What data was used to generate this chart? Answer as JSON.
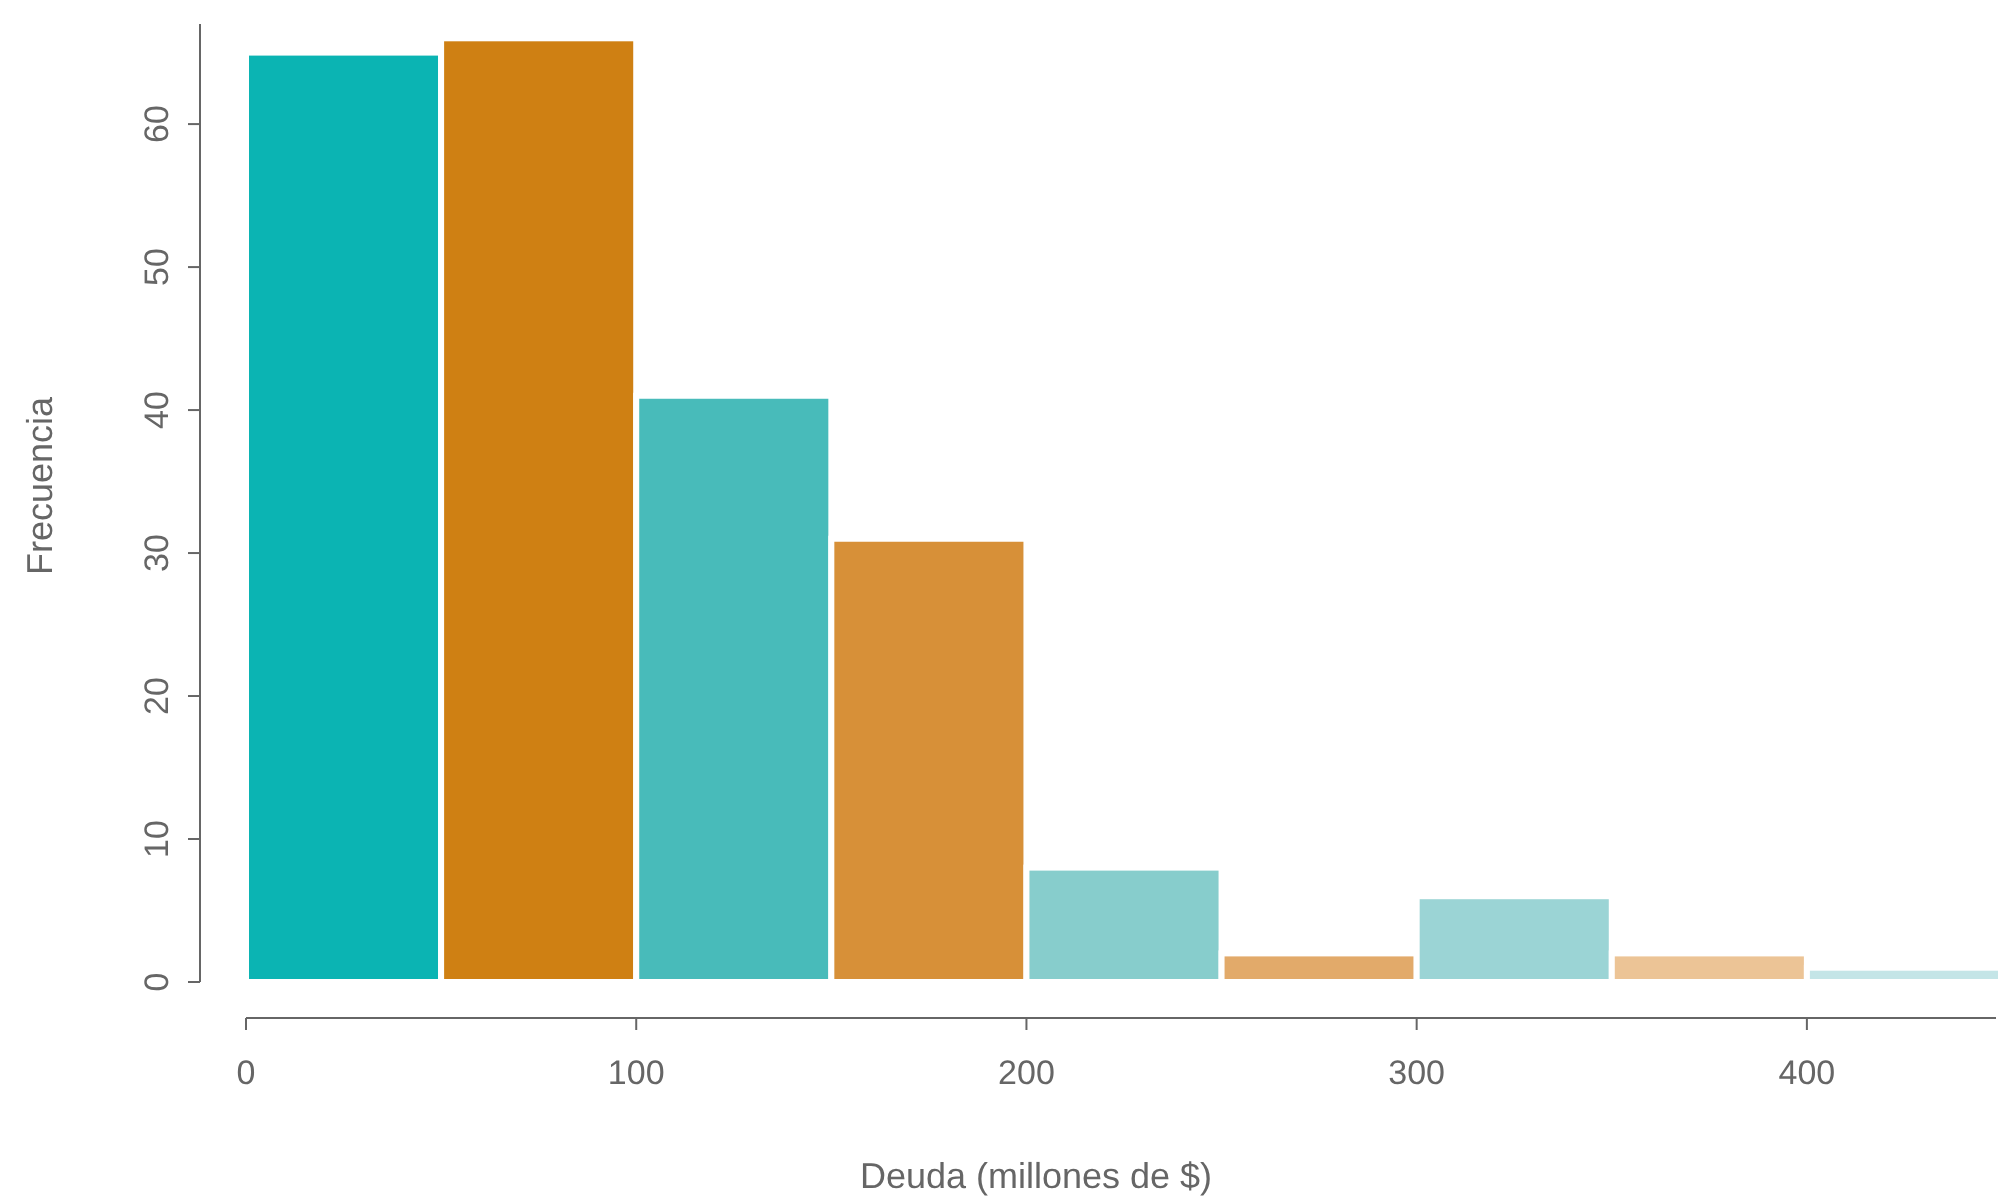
{
  "chart_data": {
    "type": "histogram",
    "xlabel": "Deuda (millones de $)",
    "ylabel": "Frecuencia",
    "bins": [
      0,
      50,
      100,
      150,
      200,
      250,
      300,
      350,
      400,
      450
    ],
    "values": [
      65,
      66,
      41,
      31,
      8,
      2,
      6,
      2,
      1
    ],
    "colors": [
      "#0bb4b3",
      "#cf8013",
      "#48bbba",
      "#d79038",
      "#87cdcc",
      "#e2aa6a",
      "#9bd4d5",
      "#ecc496",
      "#c4e5e7"
    ],
    "xlim": [
      0,
      450
    ],
    "xticks": [
      0,
      100,
      200,
      300,
      400
    ],
    "ylim": [
      0,
      67
    ],
    "yticks": [
      0,
      10,
      20,
      30,
      40,
      50,
      60
    ]
  }
}
